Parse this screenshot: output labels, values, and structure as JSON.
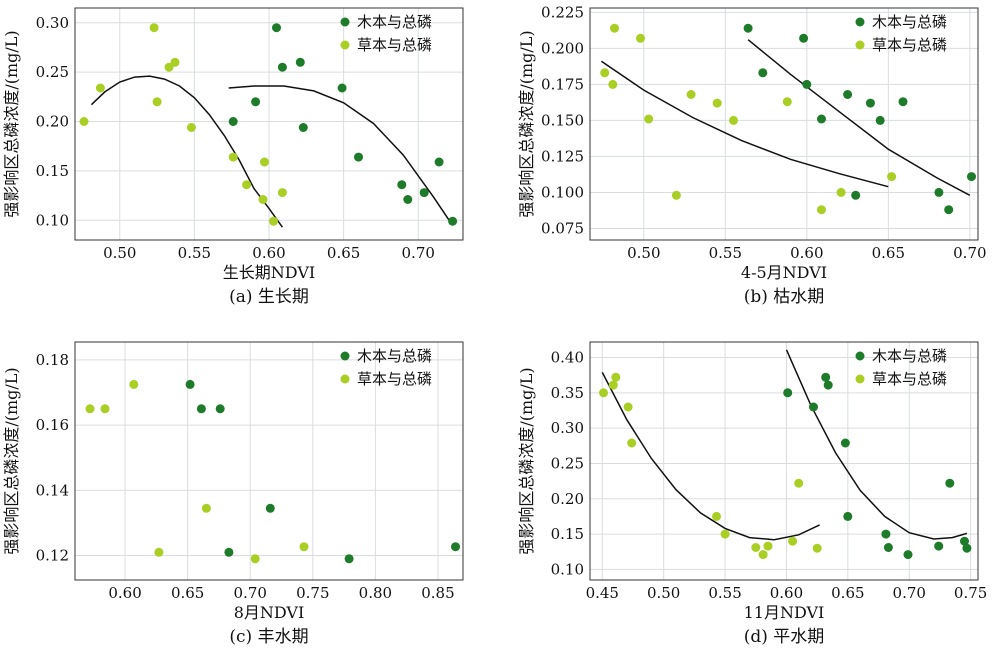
{
  "colors": {
    "woody": "#1e7b2a",
    "herb": "#a9cf24",
    "fit": "#111111",
    "grid": "#d9dde0",
    "frame": "#333333"
  },
  "chart_data": [
    {
      "id": "a",
      "type": "scatter",
      "caption": "(a) 生长期",
      "xlabel": "生长期NDVI",
      "ylabel": "强影响区总磷浓度/(mg/L)",
      "xlim": [
        0.47,
        0.73
      ],
      "ylim": [
        0.08,
        0.315
      ],
      "xticks": [
        "0.50",
        "0.55",
        "0.60",
        "0.65",
        "0.70"
      ],
      "yticks": [
        "0.10",
        "0.15",
        "0.20",
        "0.25",
        "0.30"
      ],
      "grid": true,
      "legend_position": "top-right",
      "series": [
        {
          "name": "木本与总磷",
          "color_key": "woody",
          "points": [
            [
              0.576,
              0.2
            ],
            [
              0.591,
              0.22
            ],
            [
              0.605,
              0.295
            ],
            [
              0.609,
              0.255
            ],
            [
              0.621,
              0.26
            ],
            [
              0.623,
              0.194
            ],
            [
              0.649,
              0.234
            ],
            [
              0.66,
              0.164
            ],
            [
              0.689,
              0.136
            ],
            [
              0.693,
              0.121
            ],
            [
              0.704,
              0.128
            ],
            [
              0.714,
              0.159
            ],
            [
              0.723,
              0.099
            ]
          ]
        },
        {
          "name": "草本与总磷",
          "color_key": "herb",
          "points": [
            [
              0.476,
              0.2
            ],
            [
              0.487,
              0.234
            ],
            [
              0.523,
              0.295
            ],
            [
              0.525,
              0.22
            ],
            [
              0.533,
              0.255
            ],
            [
              0.537,
              0.26
            ],
            [
              0.548,
              0.194
            ],
            [
              0.576,
              0.164
            ],
            [
              0.585,
              0.136
            ],
            [
              0.596,
              0.121
            ],
            [
              0.597,
              0.159
            ],
            [
              0.603,
              0.099
            ],
            [
              0.609,
              0.128
            ]
          ]
        }
      ],
      "fits": [
        [
          [
            0.481,
            0.217
          ],
          [
            0.49,
            0.23
          ],
          [
            0.5,
            0.24
          ],
          [
            0.51,
            0.245
          ],
          [
            0.52,
            0.246
          ],
          [
            0.53,
            0.243
          ],
          [
            0.54,
            0.236
          ],
          [
            0.55,
            0.224
          ],
          [
            0.56,
            0.207
          ],
          [
            0.57,
            0.186
          ],
          [
            0.58,
            0.161
          ],
          [
            0.59,
            0.132
          ],
          [
            0.6,
            0.112
          ],
          [
            0.609,
            0.093
          ]
        ],
        [
          [
            0.573,
            0.234
          ],
          [
            0.59,
            0.236
          ],
          [
            0.61,
            0.236
          ],
          [
            0.63,
            0.231
          ],
          [
            0.65,
            0.219
          ],
          [
            0.67,
            0.198
          ],
          [
            0.69,
            0.166
          ],
          [
            0.71,
            0.124
          ],
          [
            0.722,
            0.097
          ]
        ]
      ]
    },
    {
      "id": "b",
      "type": "scatter",
      "caption": "(b) 枯水期",
      "xlabel": "4-5月NDVI",
      "ylabel": "强影响区总磷浓度/(mg/L)",
      "xlim": [
        0.467,
        0.705
      ],
      "ylim": [
        0.067,
        0.228
      ],
      "xticks": [
        "0.50",
        "0.55",
        "0.60",
        "0.65",
        "0.70"
      ],
      "yticks": [
        "0.075",
        "0.100",
        "0.125",
        "0.150",
        "0.175",
        "0.200",
        "0.225"
      ],
      "grid": true,
      "legend_position": "top-right",
      "series": [
        {
          "name": "木本与总磷",
          "color_key": "woody",
          "points": [
            [
              0.564,
              0.214
            ],
            [
              0.573,
              0.183
            ],
            [
              0.598,
              0.207
            ],
            [
              0.6,
              0.175
            ],
            [
              0.609,
              0.151
            ],
            [
              0.625,
              0.168
            ],
            [
              0.63,
              0.098
            ],
            [
              0.639,
              0.162
            ],
            [
              0.645,
              0.15
            ],
            [
              0.659,
              0.163
            ],
            [
              0.681,
              0.1
            ],
            [
              0.687,
              0.088
            ],
            [
              0.701,
              0.111
            ]
          ]
        },
        {
          "name": "草本与总磷",
          "color_key": "herb",
          "points": [
            [
              0.476,
              0.183
            ],
            [
              0.481,
              0.175
            ],
            [
              0.482,
              0.214
            ],
            [
              0.498,
              0.207
            ],
            [
              0.503,
              0.151
            ],
            [
              0.52,
              0.098
            ],
            [
              0.529,
              0.168
            ],
            [
              0.545,
              0.162
            ],
            [
              0.555,
              0.15
            ],
            [
              0.588,
              0.163
            ],
            [
              0.609,
              0.088
            ],
            [
              0.621,
              0.1
            ],
            [
              0.652,
              0.111
            ]
          ]
        }
      ],
      "fits": [
        [
          [
            0.474,
            0.191
          ],
          [
            0.5,
            0.171
          ],
          [
            0.53,
            0.152
          ],
          [
            0.56,
            0.136
          ],
          [
            0.59,
            0.123
          ],
          [
            0.62,
            0.113
          ],
          [
            0.65,
            0.104
          ]
        ],
        [
          [
            0.564,
            0.206
          ],
          [
            0.59,
            0.182
          ],
          [
            0.62,
            0.156
          ],
          [
            0.65,
            0.13
          ],
          [
            0.68,
            0.11
          ],
          [
            0.7,
            0.098
          ]
        ]
      ]
    },
    {
      "id": "c",
      "type": "scatter",
      "caption": "(c) 丰水期",
      "xlabel": "8月NDVI",
      "ylabel": "强影响区总磷浓度/(mg/L)",
      "xlim": [
        0.56,
        0.87
      ],
      "ylim": [
        0.1125,
        0.1855
      ],
      "xticks": [
        "0.60",
        "0.65",
        "0.70",
        "0.75",
        "0.80",
        "0.85"
      ],
      "yticks": [
        "0.12",
        "0.14",
        "0.16",
        "0.18"
      ],
      "grid": true,
      "legend_position": "top-right",
      "series": [
        {
          "name": "木本与总磷",
          "color_key": "woody",
          "points": [
            [
              0.652,
              0.1725
            ],
            [
              0.661,
              0.165
            ],
            [
              0.676,
              0.165
            ],
            [
              0.683,
              0.121
            ],
            [
              0.716,
              0.1345
            ],
            [
              0.779,
              0.119
            ],
            [
              0.864,
              0.1227
            ]
          ]
        },
        {
          "name": "草本与总磷",
          "color_key": "herb",
          "points": [
            [
              0.572,
              0.165
            ],
            [
              0.584,
              0.165
            ],
            [
              0.607,
              0.1725
            ],
            [
              0.627,
              0.121
            ],
            [
              0.665,
              0.1345
            ],
            [
              0.704,
              0.119
            ],
            [
              0.743,
              0.1227
            ]
          ]
        }
      ],
      "fits": []
    },
    {
      "id": "d",
      "type": "scatter",
      "caption": "(d) 平水期",
      "xlabel": "11月NDVI",
      "ylabel": "强影响区总磷浓度/(mg/L)",
      "xlim": [
        0.44,
        0.756
      ],
      "ylim": [
        0.085,
        0.422
      ],
      "xticks": [
        "0.45",
        "0.50",
        "0.55",
        "0.60",
        "0.65",
        "0.70",
        "0.75"
      ],
      "yticks": [
        "0.10",
        "0.15",
        "0.20",
        "0.25",
        "0.30",
        "0.35",
        "0.40"
      ],
      "grid": true,
      "legend_position": "top-right",
      "series": [
        {
          "name": "木本与总磷",
          "color_key": "woody",
          "points": [
            [
              0.601,
              0.35
            ],
            [
              0.622,
              0.33
            ],
            [
              0.632,
              0.372
            ],
            [
              0.634,
              0.361
            ],
            [
              0.648,
              0.279
            ],
            [
              0.65,
              0.175
            ],
            [
              0.681,
              0.15
            ],
            [
              0.683,
              0.131
            ],
            [
              0.699,
              0.121
            ],
            [
              0.724,
              0.133
            ],
            [
              0.733,
              0.222
            ],
            [
              0.745,
              0.14
            ],
            [
              0.747,
              0.13
            ]
          ]
        },
        {
          "name": "草本与总磷",
          "color_key": "herb",
          "points": [
            [
              0.451,
              0.35
            ],
            [
              0.459,
              0.361
            ],
            [
              0.461,
              0.372
            ],
            [
              0.471,
              0.33
            ],
            [
              0.474,
              0.279
            ],
            [
              0.543,
              0.175
            ],
            [
              0.55,
              0.15
            ],
            [
              0.575,
              0.131
            ],
            [
              0.581,
              0.121
            ],
            [
              0.585,
              0.133
            ],
            [
              0.605,
              0.14
            ],
            [
              0.61,
              0.222
            ],
            [
              0.625,
              0.13
            ]
          ]
        }
      ],
      "fits": [
        [
          [
            0.45,
            0.379
          ],
          [
            0.47,
            0.312
          ],
          [
            0.49,
            0.257
          ],
          [
            0.51,
            0.213
          ],
          [
            0.53,
            0.18
          ],
          [
            0.55,
            0.158
          ],
          [
            0.57,
            0.145
          ],
          [
            0.59,
            0.142
          ],
          [
            0.61,
            0.149
          ],
          [
            0.627,
            0.163
          ]
        ],
        [
          [
            0.6,
            0.411
          ],
          [
            0.62,
            0.332
          ],
          [
            0.64,
            0.265
          ],
          [
            0.66,
            0.212
          ],
          [
            0.68,
            0.175
          ],
          [
            0.7,
            0.152
          ],
          [
            0.72,
            0.143
          ],
          [
            0.735,
            0.145
          ],
          [
            0.747,
            0.151
          ]
        ]
      ]
    }
  ]
}
